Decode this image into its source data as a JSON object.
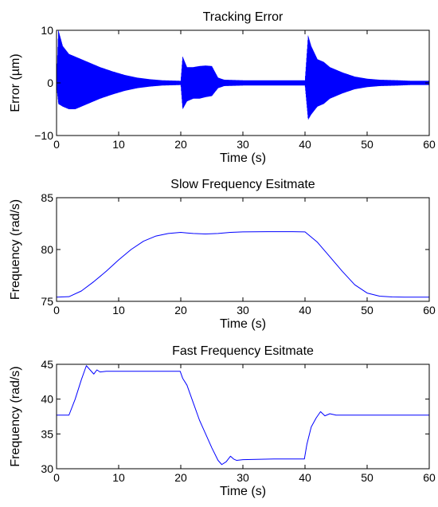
{
  "chart_data": [
    {
      "type": "line",
      "title": "Tracking Error",
      "xlabel": "Time (s)",
      "ylabel": "Error (µm)",
      "xlim": [
        0,
        60
      ],
      "ylim": [
        -10,
        10
      ],
      "x_ticks": [
        0,
        10,
        20,
        30,
        40,
        50,
        60
      ],
      "y_ticks": [
        -10,
        0,
        10
      ],
      "x_tick_labels": [
        "0",
        "10",
        "20",
        "30",
        "40",
        "50",
        "60"
      ],
      "y_tick_labels": [
        "−10",
        "0",
        "10"
      ],
      "grid": false,
      "series": [
        {
          "color": "#0000ff",
          "style": "oscillating envelope",
          "envelope": {
            "x": [
              0,
              0.3,
              1,
              2,
              3,
              5,
              7,
              9,
              11,
              13,
              15,
              17,
              19.9,
              20,
              20.3,
              21,
              22,
              23,
              24,
              25,
              26,
              27,
              30,
              35,
              39.9,
              40,
              40.5,
              41,
              42,
              43,
              44,
              45,
              46,
              48,
              50,
              52,
              55,
              57,
              60
            ],
            "upper": [
              0.5,
              10,
              7,
              5.5,
              5,
              4,
              3,
              2.2,
              1.5,
              1,
              0.7,
              0.5,
              0.4,
              0.4,
              5,
              3,
              3,
              3.2,
              3.3,
              3.2,
              1,
              0.6,
              0.5,
              0.5,
              0.5,
              0.5,
              9,
              7,
              4.5,
              4,
              3,
              2.5,
              2,
              1.2,
              0.8,
              0.6,
              0.5,
              0.4,
              0.4
            ],
            "lower": [
              -0.5,
              -4,
              -4.5,
              -5,
              -5,
              -4,
              -3,
              -2.2,
              -1.5,
              -1,
              -0.7,
              -0.5,
              -0.4,
              -0.4,
              -5,
              -3.5,
              -3,
              -3,
              -2.7,
              -2.5,
              -1,
              -0.6,
              -0.5,
              -0.5,
              -0.5,
              -0.5,
              -7,
              -6,
              -4.5,
              -4,
              -3,
              -2.5,
              -2,
              -1.2,
              -0.8,
              -0.6,
              -0.5,
              -0.4,
              -0.4
            ]
          }
        }
      ]
    },
    {
      "type": "line",
      "title": "Slow Frequency Esitmate",
      "xlabel": "Time (s)",
      "ylabel": "Frequency (rad/s)",
      "xlim": [
        0,
        60
      ],
      "ylim": [
        75,
        85
      ],
      "x_ticks": [
        0,
        10,
        20,
        30,
        40,
        50,
        60
      ],
      "y_ticks": [
        75,
        80,
        85
      ],
      "x_tick_labels": [
        "0",
        "10",
        "20",
        "30",
        "40",
        "50",
        "60"
      ],
      "y_tick_labels": [
        "75",
        "80",
        "85"
      ],
      "grid": false,
      "series": [
        {
          "color": "#0000ff",
          "x": [
            0,
            2,
            4,
            6,
            8,
            10,
            12,
            14,
            16,
            18,
            20,
            21,
            22,
            24,
            26,
            28,
            30,
            34,
            38,
            40,
            42,
            44,
            46,
            48,
            50,
            52,
            54,
            56,
            58,
            60
          ],
          "y": [
            75.4,
            75.45,
            76.0,
            76.9,
            77.9,
            79.0,
            80.0,
            80.8,
            81.3,
            81.55,
            81.65,
            81.6,
            81.55,
            81.5,
            81.55,
            81.65,
            81.7,
            81.72,
            81.72,
            81.7,
            80.7,
            79.3,
            77.9,
            76.6,
            75.8,
            75.5,
            75.42,
            75.4,
            75.4,
            75.4
          ]
        }
      ]
    },
    {
      "type": "line",
      "title": "Fast Frequency Esitmate",
      "xlabel": "Time (s)",
      "ylabel": "Frequency (rad/s)",
      "xlim": [
        0,
        60
      ],
      "ylim": [
        30,
        45
      ],
      "x_ticks": [
        0,
        10,
        20,
        30,
        40,
        50,
        60
      ],
      "y_ticks": [
        30,
        35,
        40,
        45
      ],
      "x_tick_labels": [
        "0",
        "10",
        "20",
        "30",
        "40",
        "50",
        "60"
      ],
      "y_tick_labels": [
        "30",
        "35",
        "40",
        "45"
      ],
      "grid": false,
      "series": [
        {
          "color": "#0000ff",
          "x": [
            0,
            2,
            3,
            4,
            4.8,
            5.5,
            6,
            6.5,
            7,
            8,
            10,
            15,
            19.9,
            20.3,
            21,
            22,
            23,
            24,
            25,
            26,
            26.6,
            27.3,
            28,
            28.5,
            29,
            30,
            35,
            39.9,
            40.3,
            41,
            41.8,
            42.5,
            43.2,
            44,
            45,
            47,
            50,
            55,
            60
          ],
          "y": [
            37.7,
            37.7,
            40.0,
            42.8,
            44.8,
            44.1,
            43.6,
            44.2,
            43.9,
            44.0,
            44.0,
            44.0,
            44.0,
            43.0,
            42.0,
            39.5,
            37.0,
            35.0,
            33.0,
            31.2,
            30.6,
            31.0,
            31.8,
            31.4,
            31.2,
            31.3,
            31.4,
            31.4,
            33.5,
            36.0,
            37.3,
            38.2,
            37.6,
            37.9,
            37.7,
            37.7,
            37.7,
            37.7,
            37.7
          ]
        }
      ]
    }
  ]
}
